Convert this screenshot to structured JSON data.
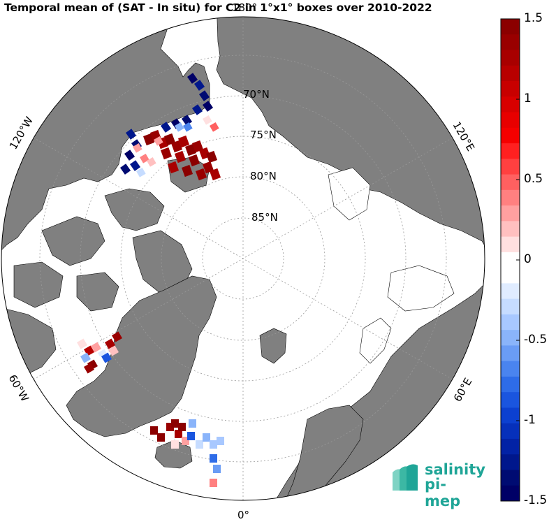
{
  "title": "Temporal mean of (SAT - In situ) for C2 in 1°x1° boxes over 2010-2022",
  "lat_labels": [
    "70°N",
    "75°N",
    "80°N",
    "85°N"
  ],
  "lon_labels": {
    "top": "180°",
    "bottom": "0°",
    "left_upper": "120°W",
    "left_lower": "60°W",
    "right_upper": "120°E",
    "right_lower": "60°E"
  },
  "colorbar": {
    "min": -1.5,
    "max": 1.5,
    "ticks": [
      "1.5",
      "1",
      "0.5",
      "0",
      "-0.5",
      "-1",
      "-1.5"
    ],
    "tick_values": [
      1.5,
      1,
      0.5,
      0,
      -0.5,
      -1,
      -1.5
    ],
    "colors_top_to_bottom": [
      "#8b0000",
      "#990000",
      "#a80000",
      "#b80000",
      "#c80000",
      "#d80000",
      "#e80000",
      "#f50000",
      "#ff2020",
      "#ff4040",
      "#ff6060",
      "#ff8080",
      "#ffa0a0",
      "#ffc0c0",
      "#ffe0e0",
      "#ffffff",
      "#ffffff",
      "#e0ecff",
      "#c6dcff",
      "#a8c8ff",
      "#8ab4fa",
      "#6a9cf5",
      "#4a84ef",
      "#2e6ce8",
      "#1a55df",
      "#0c40d0",
      "#0630bb",
      "#0222a5",
      "#00178c",
      "#000b72",
      "#000066"
    ]
  },
  "colors": {
    "land": "#808080",
    "ocean": "#ffffff",
    "coast": "#000000"
  },
  "logo": {
    "line1": "salinity",
    "line2": "pi-mep"
  }
}
